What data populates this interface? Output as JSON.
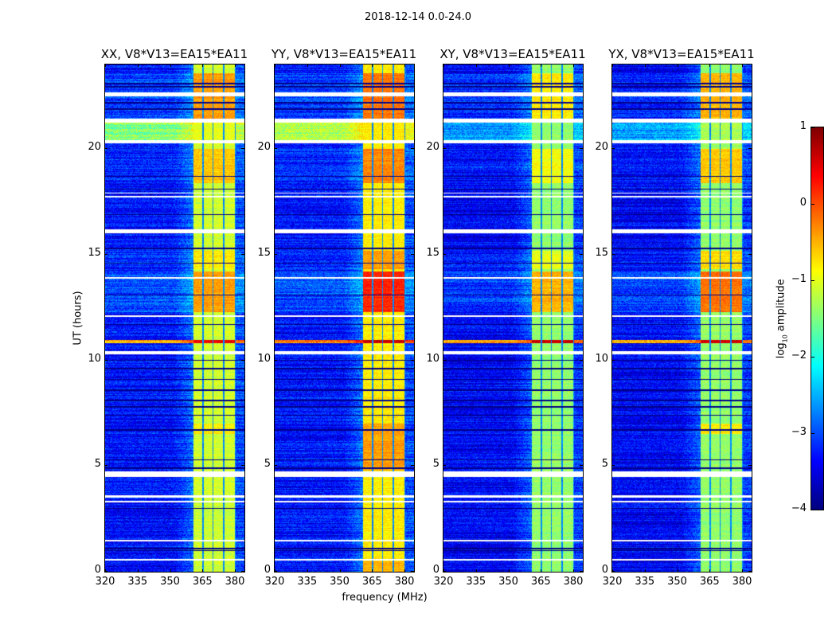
{
  "chart_data": {
    "type": "heatmap",
    "suptitle": "2018-12-14 0.0-24.0",
    "xlabel": "frequency (MHz)",
    "ylabel": "UT (hours)",
    "xlim": [
      320,
      384.4
    ],
    "ylim": [
      0,
      24
    ],
    "xticks": [
      320,
      335,
      350,
      365,
      380
    ],
    "yticks": [
      0,
      5,
      10,
      15,
      20
    ],
    "colormap": "jet",
    "colorbar": {
      "label_main": "log",
      "label_sub": "10",
      "label_rest": " amplitude",
      "range": [
        -4,
        1
      ],
      "ticks": [
        "−4",
        "−3",
        "−2",
        "−1",
        "0",
        "1"
      ]
    },
    "signal_band_mhz": [
      360.7,
      380.4
    ],
    "notch_channels_mhz": [
      [
        365.0,
        365.5
      ],
      [
        369.7,
        370.2
      ],
      [
        374.6,
        375.1
      ],
      [
        380.0,
        380.4
      ]
    ],
    "flagged_gaps_hours": [
      [
        22.5,
        22.7
      ],
      [
        21.25,
        21.45
      ],
      [
        20.28,
        20.43
      ],
      [
        17.7,
        17.8
      ],
      [
        17.88,
        17.95
      ],
      [
        16.0,
        16.2
      ],
      [
        13.88,
        13.93
      ],
      [
        12.05,
        12.12
      ],
      [
        10.3,
        10.45
      ],
      [
        4.5,
        4.73
      ],
      [
        3.27,
        3.36
      ],
      [
        3.5,
        3.62
      ],
      [
        1.45,
        1.5
      ],
      [
        0.53,
        0.62
      ]
    ],
    "dark_lines_hours": [
      23.1,
      22.95,
      22.2,
      21.9,
      18.7,
      18.1,
      16.9,
      15.3,
      14.6,
      13.1,
      11.7,
      10.0,
      9.6,
      9.1,
      8.6,
      8.1,
      7.8,
      7.4,
      6.7,
      5.3,
      4.9,
      3.0,
      1.1,
      1.0
    ],
    "panels": [
      {
        "title": "XX, V8*V13=EA15*EA11",
        "background": -3.3,
        "band": -1.1,
        "events": [
          {
            "t": [
              21.45,
              23.6
            ],
            "bg": -3.1,
            "band": -0.4
          },
          {
            "t": [
              20.43,
              21.25
            ],
            "bg": -1.5,
            "band": -1.0
          },
          {
            "t": [
              18.4,
              20.0
            ],
            "bg": -3.2,
            "band": -0.6
          },
          {
            "t": [
              12.3,
              14.2
            ],
            "bg": -3.0,
            "band": -0.4
          },
          {
            "t": [
              14.3,
              15.2
            ],
            "bg": -3.2,
            "band": -0.8
          },
          {
            "t": [
              10.8,
              10.97
            ],
            "bg": -0.4,
            "band": 0.5
          },
          {
            "t": [
              6.5,
              7.0
            ],
            "bg": -3.3,
            "band": -0.8
          }
        ]
      },
      {
        "title": "YY, V8*V13=EA15*EA11",
        "background": -3.3,
        "band": -0.8,
        "events": [
          {
            "t": [
              21.45,
              23.6
            ],
            "bg": -3.1,
            "band": -0.2
          },
          {
            "t": [
              20.43,
              21.25
            ],
            "bg": -1.3,
            "band": -0.8
          },
          {
            "t": [
              18.4,
              20.0
            ],
            "bg": -3.2,
            "band": -0.3
          },
          {
            "t": [
              12.3,
              14.2
            ],
            "bg": -3.0,
            "band": 0.2
          },
          {
            "t": [
              14.3,
              15.2
            ],
            "bg": -3.2,
            "band": -0.4
          },
          {
            "t": [
              10.8,
              10.97
            ],
            "bg": -0.3,
            "band": 0.6
          },
          {
            "t": [
              4.8,
              7.0
            ],
            "bg": -3.3,
            "band": -0.4
          },
          {
            "t": [
              0,
              0.5
            ],
            "bg": -3.3,
            "band": -0.5
          }
        ]
      },
      {
        "title": "XY, V8*V13=EA15*EA11",
        "background": -3.4,
        "band": -1.4,
        "events": [
          {
            "t": [
              21.45,
              23.6
            ],
            "bg": -3.2,
            "band": -0.8
          },
          {
            "t": [
              20.43,
              21.25
            ],
            "bg": -2.6,
            "band": -1.4
          },
          {
            "t": [
              18.4,
              20.0
            ],
            "bg": -3.3,
            "band": -0.9
          },
          {
            "t": [
              12.3,
              14.2
            ],
            "bg": -3.1,
            "band": -0.5
          },
          {
            "t": [
              14.3,
              15.2
            ],
            "bg": -3.3,
            "band": -1.0
          },
          {
            "t": [
              10.8,
              10.97
            ],
            "bg": -0.5,
            "band": 0.6
          }
        ]
      },
      {
        "title": "YX, V8*V13=EA15*EA11",
        "background": -3.4,
        "band": -1.4,
        "events": [
          {
            "t": [
              21.45,
              23.6
            ],
            "bg": -3.2,
            "band": -0.5
          },
          {
            "t": [
              20.43,
              21.25
            ],
            "bg": -2.6,
            "band": -1.3
          },
          {
            "t": [
              18.4,
              20.0
            ],
            "bg": -3.3,
            "band": -0.6
          },
          {
            "t": [
              12.3,
              14.2
            ],
            "bg": -3.1,
            "band": -0.2
          },
          {
            "t": [
              14.3,
              15.2
            ],
            "bg": -3.3,
            "band": -0.7
          },
          {
            "t": [
              10.8,
              10.97
            ],
            "bg": -0.5,
            "band": 0.6
          },
          {
            "t": [
              6.5,
              7.0
            ],
            "bg": -3.4,
            "band": -0.8
          }
        ]
      }
    ]
  }
}
